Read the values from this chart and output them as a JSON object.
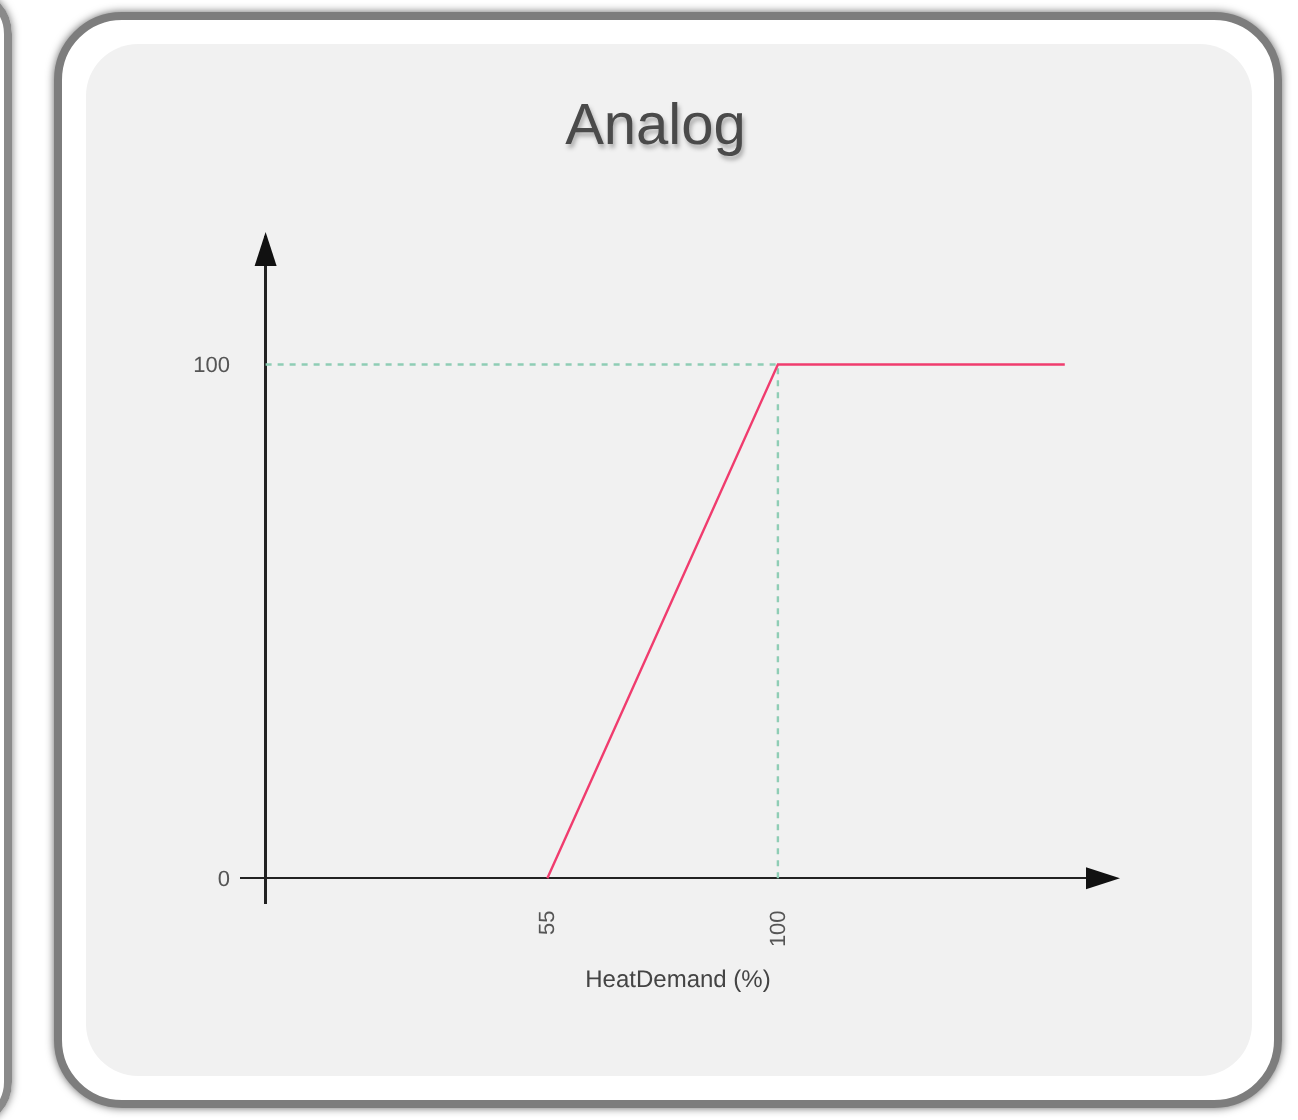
{
  "chart_data": {
    "type": "line",
    "title": "Analog",
    "xlabel": "HeatDemand (%)",
    "xlim": [
      -5,
      166
    ],
    "ylim": [
      -5,
      125
    ],
    "xticks": [
      55,
      100
    ],
    "yticks": [
      0,
      100
    ],
    "series": [
      {
        "color": "#8fcdb5",
        "line_style": "dotted",
        "x": [
          0,
          100,
          100
        ],
        "values": [
          100,
          100,
          0
        ]
      },
      {
        "color": "#f03c6e",
        "line_style": "solid",
        "x": [
          55,
          100,
          156
        ],
        "values": [
          0,
          100,
          100
        ]
      }
    ]
  }
}
